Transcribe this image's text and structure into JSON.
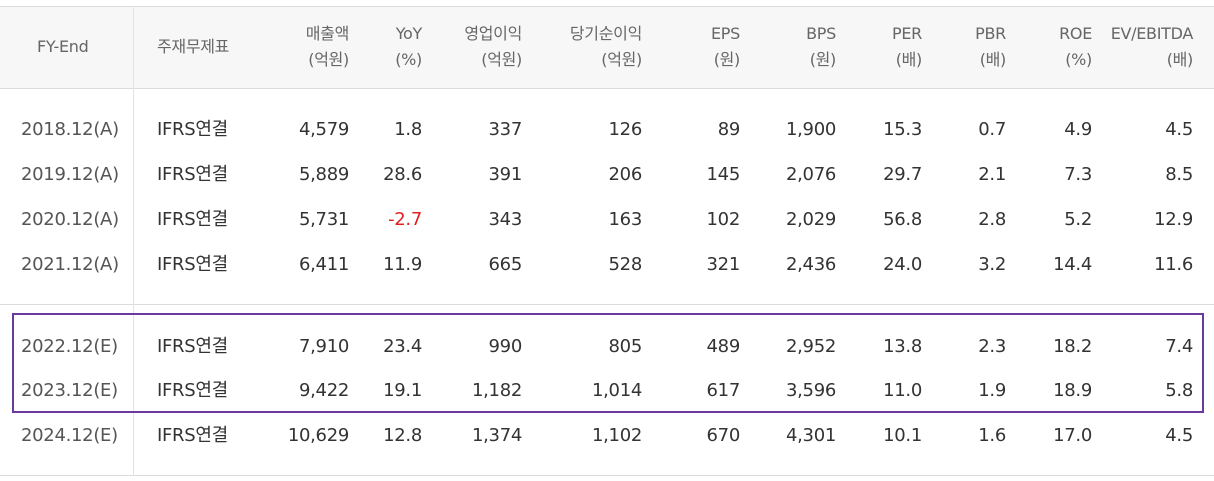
{
  "headers": {
    "fy_end": "FY-End",
    "type": "주재무제표",
    "cols": [
      {
        "name": "매출액",
        "unit": "(억원)"
      },
      {
        "name": "YoY",
        "unit": "(%)"
      },
      {
        "name": "영업이익",
        "unit": "(억원)"
      },
      {
        "name": "당기순이익",
        "unit": "(억원)"
      },
      {
        "name": "EPS",
        "unit": "(원)"
      },
      {
        "name": "BPS",
        "unit": "(원)"
      },
      {
        "name": "PER",
        "unit": "(배)"
      },
      {
        "name": "PBR",
        "unit": "(배)"
      },
      {
        "name": "ROE",
        "unit": "(%)"
      },
      {
        "name": "EV/EBITDA",
        "unit": "(배)"
      }
    ]
  },
  "rows": [
    {
      "fy": "2018.12(A)",
      "type": "IFRS연결",
      "vals": [
        "4,579",
        "1.8",
        "337",
        "126",
        "89",
        "1,900",
        "15.3",
        "0.7",
        "4.9",
        "4.5"
      ]
    },
    {
      "fy": "2019.12(A)",
      "type": "IFRS연결",
      "vals": [
        "5,889",
        "28.6",
        "391",
        "206",
        "145",
        "2,076",
        "29.7",
        "2.1",
        "7.3",
        "8.5"
      ]
    },
    {
      "fy": "2020.12(A)",
      "type": "IFRS연결",
      "vals": [
        "5,731",
        "-2.7",
        "343",
        "163",
        "102",
        "2,029",
        "56.8",
        "2.8",
        "5.2",
        "12.9"
      ]
    },
    {
      "fy": "2021.12(A)",
      "type": "IFRS연결",
      "vals": [
        "6,411",
        "11.9",
        "665",
        "528",
        "321",
        "2,436",
        "24.0",
        "3.2",
        "14.4",
        "11.6"
      ]
    },
    {
      "fy": "2022.12(E)",
      "type": "IFRS연결",
      "vals": [
        "7,910",
        "23.4",
        "990",
        "805",
        "489",
        "2,952",
        "13.8",
        "2.3",
        "18.2",
        "7.4"
      ]
    },
    {
      "fy": "2023.12(E)",
      "type": "IFRS연결",
      "vals": [
        "9,422",
        "19.1",
        "1,182",
        "1,014",
        "617",
        "3,596",
        "11.0",
        "1.9",
        "18.9",
        "5.8"
      ]
    },
    {
      "fy": "2024.12(E)",
      "type": "IFRS연결",
      "vals": [
        "10,629",
        "12.8",
        "1,374",
        "1,102",
        "670",
        "4,301",
        "10.1",
        "1.6",
        "17.0",
        "4.5"
      ]
    }
  ],
  "negative_color": "#e02020",
  "highlight_color": "#6a3aa0"
}
